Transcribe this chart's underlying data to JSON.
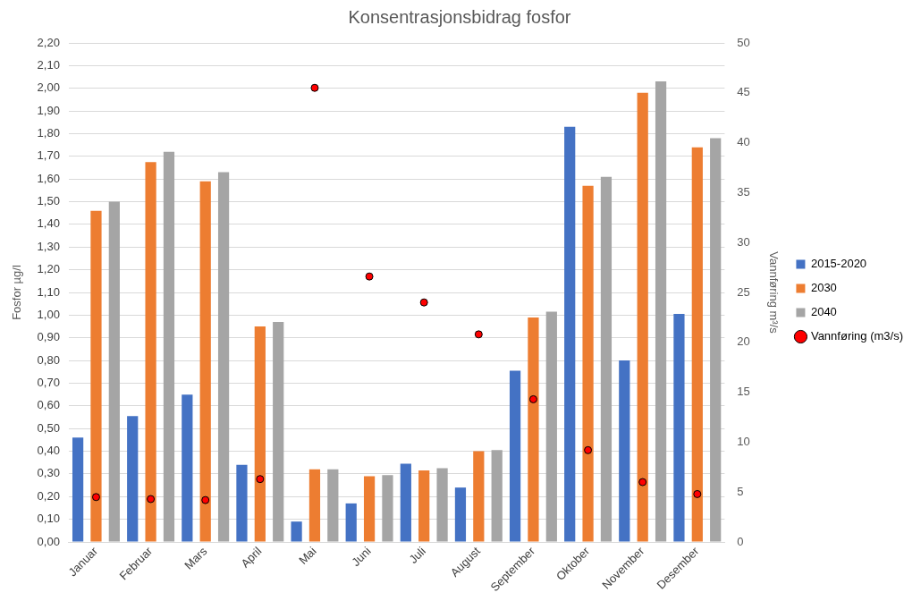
{
  "chart_data": {
    "type": "bar",
    "title": "Konsentrasjonsbidrag fosfor",
    "ylabel": "Fosfor µg/l",
    "y2label": "Vannføring m³/s",
    "categories": [
      "Januar",
      "Februar",
      "Mars",
      "April",
      "Mai",
      "Juni",
      "Juli",
      "August",
      "September",
      "Oktober",
      "November",
      "Desember"
    ],
    "series": [
      {
        "name": "2015-2020",
        "color": "#4472c4",
        "values": [
          0.46,
          0.555,
          0.65,
          0.34,
          0.09,
          0.17,
          0.345,
          0.24,
          0.755,
          1.83,
          0.8,
          1.005
        ]
      },
      {
        "name": "2030",
        "color": "#ed7d31",
        "values": [
          1.46,
          1.675,
          1.59,
          0.95,
          0.32,
          0.29,
          0.315,
          0.4,
          0.99,
          1.57,
          1.98,
          1.74
        ]
      },
      {
        "name": "2040",
        "color": "#a5a5a5",
        "values": [
          1.5,
          1.72,
          1.63,
          0.97,
          0.32,
          0.295,
          0.325,
          0.405,
          1.015,
          1.61,
          2.03,
          1.78
        ]
      },
      {
        "name": "Vannføring (m3/s)",
        "type": "scatter",
        "axis": "y2",
        "color": "#ff0000",
        "marker": "circle",
        "x": [
          "Januar",
          "Februar",
          "Mars",
          "April",
          "Mai",
          "Juni",
          "Juli",
          "August",
          "September",
          "Oktober",
          "November",
          "Desember"
        ],
        "values": [
          4.5,
          4.3,
          4.2,
          6.3,
          45.5,
          26.6,
          24.0,
          20.8,
          14.3,
          9.2,
          6.0,
          4.8
        ]
      }
    ],
    "ylim": [
      0,
      2.2
    ],
    "yticks": [
      {
        "value": 0,
        "label": "0,00"
      },
      {
        "value": 0.1,
        "label": "0,10"
      },
      {
        "value": 0.2,
        "label": "0,20"
      },
      {
        "value": 0.3,
        "label": "0,30"
      },
      {
        "value": 0.4,
        "label": "0,40"
      },
      {
        "value": 0.5,
        "label": "0,50"
      },
      {
        "value": 0.6,
        "label": "0,60"
      },
      {
        "value": 0.7,
        "label": "0,70"
      },
      {
        "value": 0.8,
        "label": "0,80"
      },
      {
        "value": 0.9,
        "label": "0,90"
      },
      {
        "value": 1.0,
        "label": "1,00"
      },
      {
        "value": 1.1,
        "label": "1,10"
      },
      {
        "value": 1.2,
        "label": "1,20"
      },
      {
        "value": 1.3,
        "label": "1,30"
      },
      {
        "value": 1.4,
        "label": "1,40"
      },
      {
        "value": 1.5,
        "label": "1,50"
      },
      {
        "value": 1.6,
        "label": "1,60"
      },
      {
        "value": 1.7,
        "label": "1,70"
      },
      {
        "value": 1.8,
        "label": "1,80"
      },
      {
        "value": 1.9,
        "label": "1,90"
      },
      {
        "value": 2.0,
        "label": "2,00"
      },
      {
        "value": 2.1,
        "label": "2,10"
      },
      {
        "value": 2.2,
        "label": "2,20"
      }
    ],
    "y2lim": [
      0,
      50
    ],
    "y2ticks": [
      0,
      5,
      10,
      15,
      20,
      25,
      30,
      35,
      40,
      45,
      50
    ],
    "grid": "y",
    "legend": "right"
  }
}
